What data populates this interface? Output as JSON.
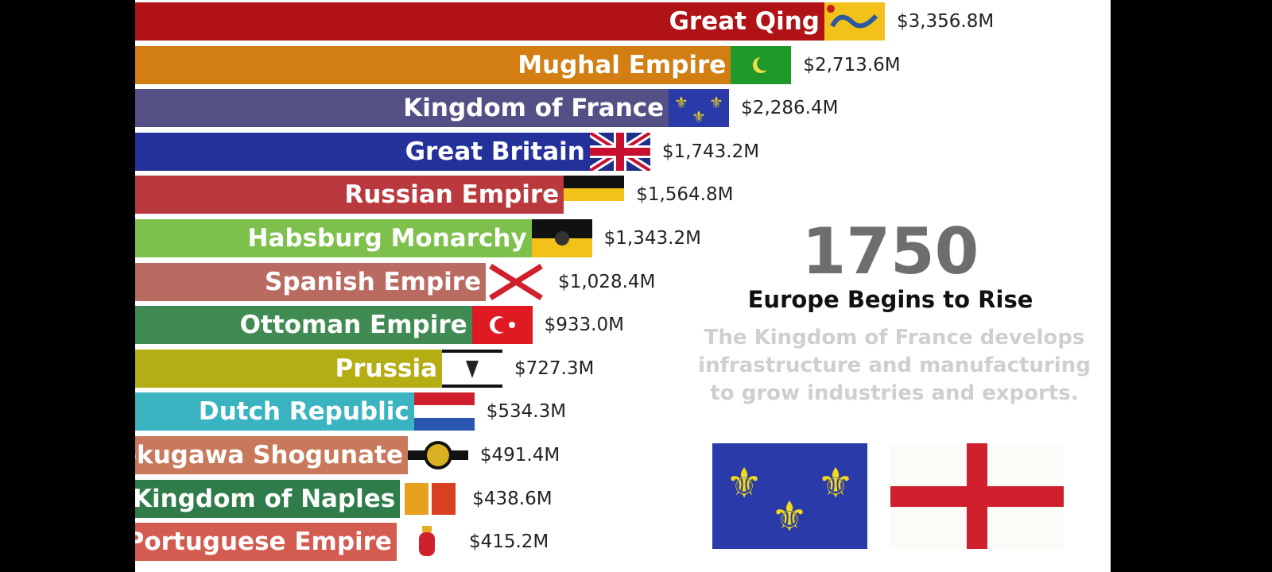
{
  "chart_data": {
    "type": "bar",
    "orientation": "horizontal",
    "categories": [
      "Great Qing",
      "Mughal Empire",
      "Kingdom of France",
      "Great Britain",
      "Russian Empire",
      "Habsburg Monarchy",
      "Spanish Empire",
      "Ottoman Empire",
      "Prussia",
      "Dutch Republic",
      "Tokugawa Shogunate",
      "Kingdom of Naples",
      "Portuguese Empire"
    ],
    "values": [
      3356.8,
      2713.6,
      2286.4,
      1743.2,
      1564.8,
      1343.2,
      1028.4,
      933.0,
      727.3,
      534.3,
      491.4,
      438.6,
      415.2
    ],
    "value_labels": [
      "$3,356.8M",
      "$2,713.6M",
      "$2,286.4M",
      "$1,743.2M",
      "$1,564.8M",
      "$1,343.2M",
      "$1,028.4M",
      "$933.0M",
      "$727.3M",
      "$534.3M",
      "$491.4M",
      "$438.6M",
      "$415.2M"
    ],
    "colors": [
      "#b01216",
      "#d37e12",
      "#545086",
      "#25319b",
      "#b9393f",
      "#7dc04b",
      "#b96b61",
      "#3f8b53",
      "#b4ad14",
      "#3bb4c1",
      "#c9795b",
      "#2f7b49",
      "#d45b50"
    ],
    "flags": [
      "qing-dragon",
      "mughal-crescent",
      "france-fleur",
      "union-jack",
      "russia-tricolor",
      "habsburg-eagle",
      "burgundy-cross",
      "ottoman-crescent",
      "prussia-eagle",
      "dutch-tricolor",
      "tokugawa-mon",
      "naples-arms",
      "portugal-arms"
    ],
    "unit": "$M",
    "grid": false
  },
  "overlay": {
    "year": "1750",
    "headline": "Europe Begins to Rise",
    "description": "The Kingdom of France develops infrastructure and manufacturing to grow industries and exports.",
    "featured_flags": [
      "france-fleur-flag",
      "england-st-george-flag"
    ]
  }
}
